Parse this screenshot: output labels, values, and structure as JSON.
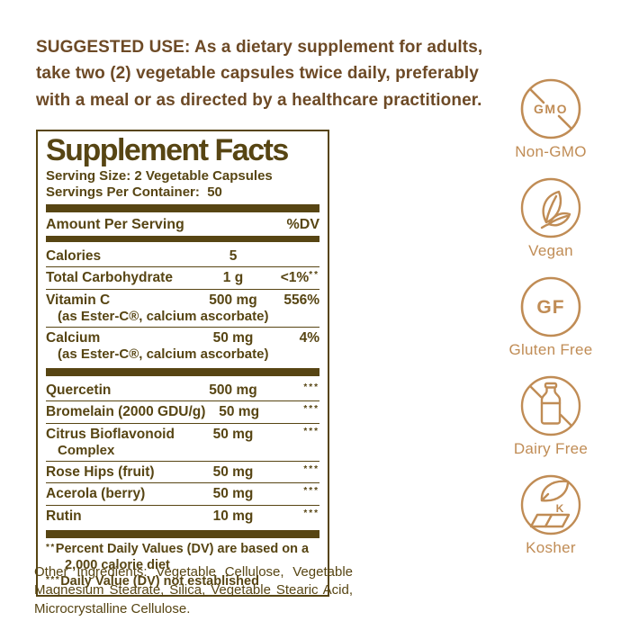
{
  "colors": {
    "ink": "#574513",
    "brown": "#6d4a26",
    "tan": "#c08c55",
    "bg": "#ffffff"
  },
  "suggested_use": {
    "text": "SUGGESTED USE: As a dietary supplement for adults,\ntake two (2) vegetable capsules twice daily, preferably\nwith a meal or as directed by a healthcare practitioner."
  },
  "supplement_facts": {
    "title": "Supplement Facts",
    "serving_size": "Serving Size: 2 Vegetable Capsules",
    "servings_per_container": "Servings Per Container:  50",
    "header": {
      "amount_label": "Amount Per Serving",
      "dv_label": "%DV"
    },
    "rows": [
      {
        "section": 1,
        "name": "Calories",
        "amount": "5",
        "dv": "",
        "note": ""
      },
      {
        "section": 1,
        "name": "Total Carbohydrate",
        "amount": "1 g",
        "dv": "<1%",
        "note": "**"
      },
      {
        "section": 1,
        "name": "Vitamin C",
        "sub": "(as Ester-C®, calcium ascorbate)",
        "amount": "500 mg",
        "dv": "556%",
        "note": ""
      },
      {
        "section": 1,
        "name": "Calcium",
        "sub": "(as Ester-C®, calcium ascorbate)",
        "amount": "50 mg",
        "dv": "4%",
        "note": ""
      },
      {
        "section": 2,
        "name": "Quercetin",
        "amount": "500 mg",
        "dv": "",
        "note": "***"
      },
      {
        "section": 2,
        "name": "Bromelain (2000 GDU/g)",
        "amount": "50 mg",
        "dv": "",
        "note": "***"
      },
      {
        "section": 2,
        "name": "Citrus Bioflavonoid",
        "name2": "Complex",
        "amount": "50 mg",
        "dv": "",
        "note": "***"
      },
      {
        "section": 2,
        "name": "Rose Hips (fruit)",
        "amount": "50 mg",
        "dv": "",
        "note": "***"
      },
      {
        "section": 2,
        "name": "Acerola (berry)",
        "amount": "50 mg",
        "dv": "",
        "note": "***"
      },
      {
        "section": 2,
        "name": "Rutin",
        "amount": "10 mg",
        "dv": "",
        "note": "***"
      }
    ],
    "footnotes": [
      {
        "note": "**",
        "text": "Percent Daily Values (DV) are based on a 2,000 calorie diet"
      },
      {
        "note": "***",
        "text": "Daily Value (DV) not established"
      }
    ]
  },
  "other_ingredients": "Other Ingredients: Vegetable Cellulose, Vegetable Magnesium Stearate, Silica, Vegetable Stearic Acid, Microcrystalline Cellulose.",
  "badges": [
    {
      "id": "non-gmo",
      "glyph": "GMO",
      "label": "Non-GMO"
    },
    {
      "id": "vegan",
      "glyph": "",
      "label": "Vegan"
    },
    {
      "id": "gluten-free",
      "glyph": "GF",
      "label": "Gluten Free"
    },
    {
      "id": "dairy-free",
      "glyph": "",
      "label": "Dairy Free"
    },
    {
      "id": "kosher",
      "glyph": "K",
      "label": "Kosher"
    }
  ]
}
